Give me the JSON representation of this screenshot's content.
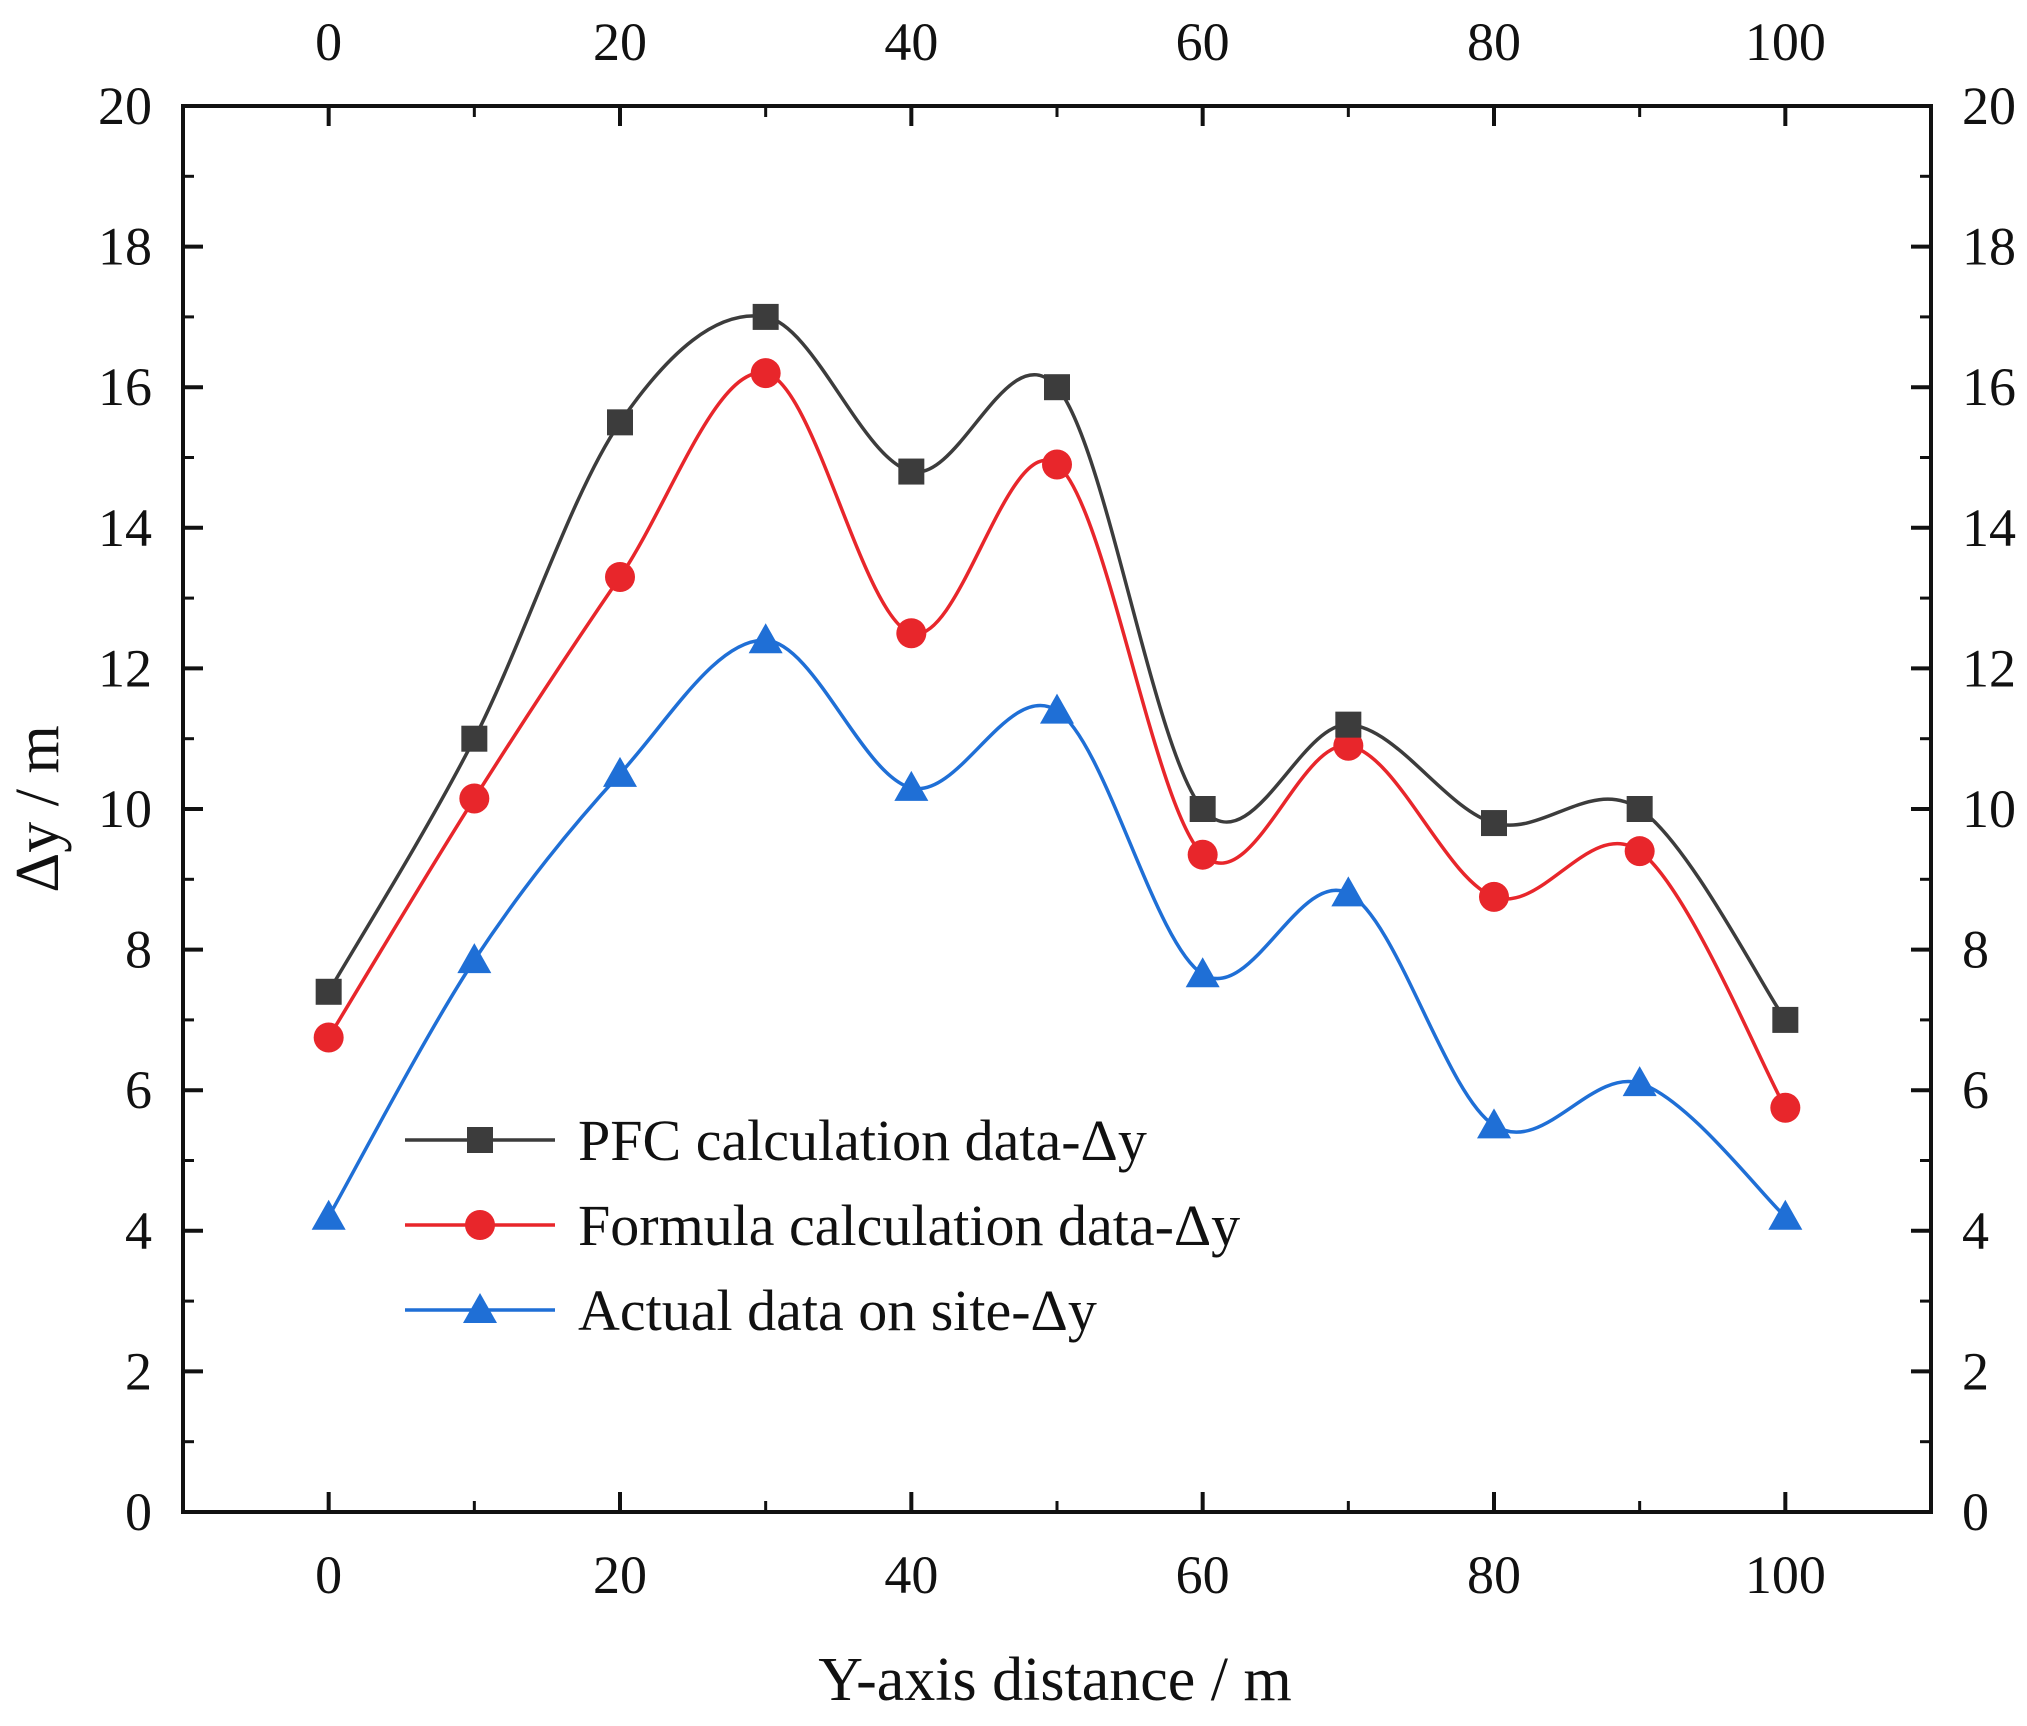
{
  "chart_data": {
    "type": "line",
    "title": "",
    "xlabel": "Y-axis distance / m",
    "ylabel": "Δy / m",
    "x": [
      0,
      10,
      20,
      30,
      40,
      50,
      60,
      70,
      80,
      90,
      100
    ],
    "xlim": [
      -10,
      110
    ],
    "ylim": [
      0,
      20
    ],
    "x_ticks": [
      0,
      20,
      40,
      60,
      80,
      100
    ],
    "y_ticks": [
      0,
      2,
      4,
      6,
      8,
      10,
      12,
      14,
      16,
      18,
      20
    ],
    "mirror_axes": true,
    "grid": false,
    "legend_position": "lower-left",
    "series": [
      {
        "name": "PFC calculation data-Δy",
        "marker": "square",
        "color": "#3c3c3c",
        "values": [
          7.4,
          11.0,
          15.5,
          17.0,
          14.8,
          16.0,
          10.0,
          11.2,
          9.8,
          10.0,
          7.0
        ]
      },
      {
        "name": "Formula calculation data-Δy",
        "marker": "circle",
        "color": "#e8262b",
        "values": [
          6.75,
          10.15,
          13.3,
          16.2,
          12.5,
          14.9,
          9.35,
          10.9,
          8.75,
          9.4,
          5.75
        ]
      },
      {
        "name": "Actual data on site-Δy",
        "marker": "triangle",
        "color": "#1f6fd6",
        "values": [
          4.2,
          7.85,
          10.5,
          12.4,
          10.3,
          11.4,
          7.65,
          8.8,
          5.5,
          6.1,
          4.2
        ]
      }
    ]
  }
}
